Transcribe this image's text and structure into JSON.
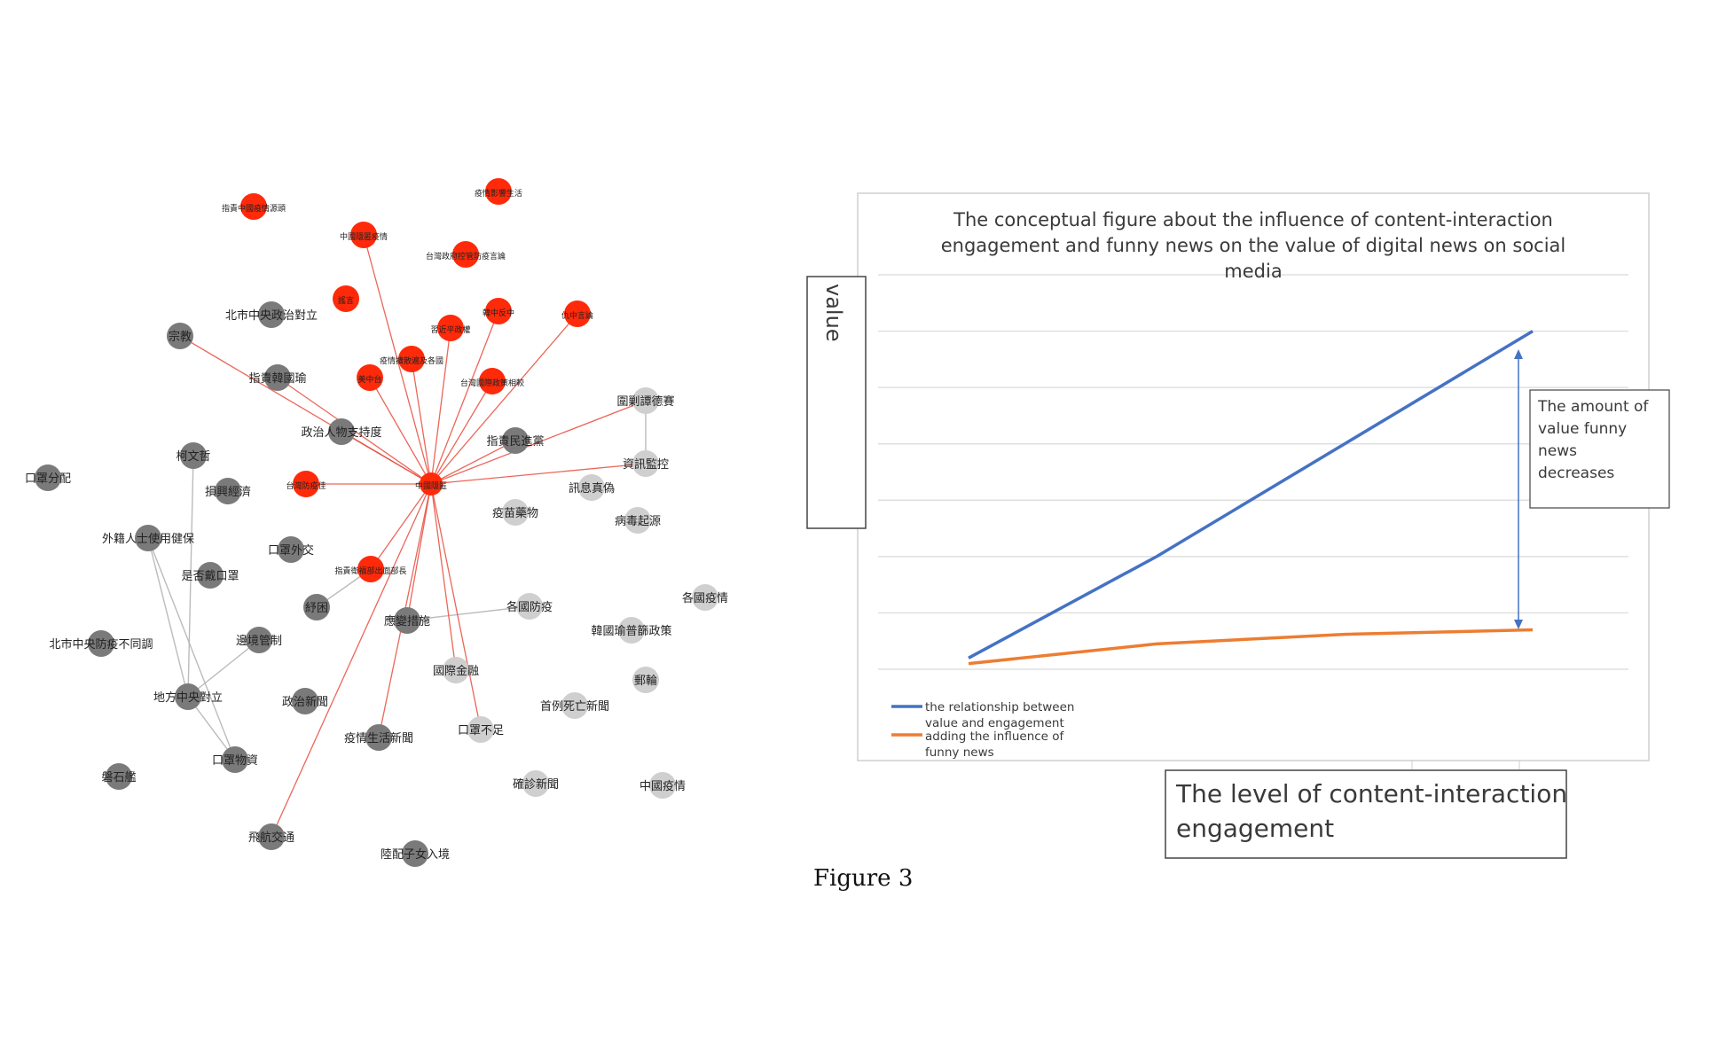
{
  "network": {
    "center": "中國隱匿",
    "red_nodes": [
      "指責中國疫情源頭",
      "疫情影響生活",
      "中國隱匿疫情",
      "台灣政府控管防疫言論",
      "謠言",
      "韓中反中",
      "習近平政權",
      "仇中言論",
      "疫情擴散遍及各國",
      "美中台",
      "台灣國際政策相較",
      "台灣防疫佳",
      "指責衛福部出面部長",
      "中國隱匿"
    ],
    "gray_nodes": [
      "北市中央政治對立",
      "宗教",
      "指責韓國瑜",
      "政治人物支持度",
      "柯文哲",
      "指責民進黨",
      "口罩分配",
      "損興經濟",
      "外籍人士使用健保",
      "是否戴口罩",
      "口罩外交",
      "紓困",
      "應變措施",
      "北市中央防疫不同調",
      "邊境管制",
      "地方中央對立",
      "政治新聞",
      "疫情生活新聞",
      "口罩物資",
      "磐石艦",
      "飛航交通",
      "陸配子女入境"
    ],
    "light_nodes": [
      "圍剿譚德賽",
      "資訊監控",
      "訊息真偽",
      "病毒起源",
      "疫苗藥物",
      "各國防疫",
      "各國疫情",
      "韓國瑜普篩政策",
      "郵輪",
      "國際金融",
      "首例死亡新聞",
      "口罩不足",
      "確診新聞",
      "中國疫情"
    ],
    "colors": {
      "red": "#ff2a0a",
      "gray": "#7a7a7a",
      "light": "#cfcfcf",
      "edge_red": "#e84c3d",
      "edge_gray": "#b0b0b0"
    }
  },
  "figure": {
    "title": "The  conceptual figure about the influence of content-interaction engagement and funny news on the value of digital news on social media",
    "title_lines": [
      "The  conceptual figure about the influence of content-interaction",
      "engagement and funny news on the value of digital news on social",
      "media"
    ],
    "ylabel": "value",
    "xlabel_lines": [
      "The level of content-interaction",
      "engagement"
    ],
    "annotation_lines": [
      "The amount of",
      "value funny",
      "news",
      "decreases"
    ],
    "legend": [
      {
        "name": "the relationship between value and engagement",
        "lines": [
          "the relationship between",
          "value and engagement"
        ],
        "color": "#4472c4"
      },
      {
        "name": "adding the influence of funny news",
        "lines": [
          "adding the influence of",
          "funny news"
        ],
        "color": "#ed7d31"
      }
    ],
    "caption": "Figure 3"
  },
  "chart_data": {
    "type": "line",
    "x": [
      1,
      2,
      3,
      4
    ],
    "series": [
      {
        "name": "the relationship between value and engagement",
        "values": [
          0.2,
          2.0,
          4.0,
          6.0
        ],
        "color": "#4472c4"
      },
      {
        "name": "adding the influence of funny news",
        "values": [
          0.1,
          0.45,
          0.62,
          0.7
        ],
        "color": "#ed7d31"
      }
    ],
    "ylim": [
      0,
      7
    ],
    "grid": true,
    "legend_position": "bottom-left",
    "title": "The  conceptual figure about the influence of content-interaction engagement and funny news on the value of digital news on social media",
    "xlabel": "The level of content-interaction engagement",
    "ylabel": "value"
  }
}
